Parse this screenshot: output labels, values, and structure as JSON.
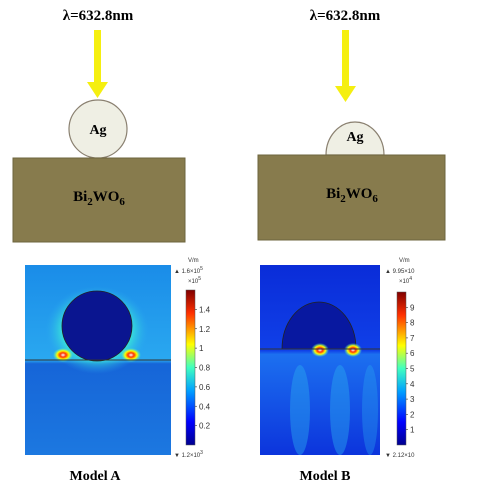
{
  "panels": [
    {
      "wavelength": "λ=632.8nm",
      "particle": "Ag",
      "substrate": {
        "base": "Bi",
        "sub1": "2",
        "mid": "WO",
        "sub2": "6"
      },
      "field": {
        "unit": "V/m",
        "max": "▲ 1.6×10",
        "max_exp": "5",
        "scale": "×10",
        "scale_exp": "5",
        "ticks": [
          "1.4",
          "1.2",
          "1",
          "0.8",
          "0.6",
          "0.4",
          "0.2"
        ],
        "min": "▼ 1.2×10",
        "min_exp": "3"
      },
      "caption": "Model A"
    },
    {
      "wavelength": "λ=632.8nm",
      "particle": "Ag",
      "substrate": {
        "base": "Bi",
        "sub1": "2",
        "mid": "WO",
        "sub2": "6"
      },
      "field": {
        "unit": "V/m",
        "max": "▲ 9.95×10",
        "max_exp": "",
        "scale": "×10",
        "scale_exp": "4",
        "ticks": [
          "9",
          "8",
          "7",
          "6",
          "5",
          "4",
          "3",
          "2",
          "1"
        ],
        "min": "▼ 2.12×10",
        "min_exp": ""
      },
      "caption": "Model B"
    }
  ]
}
